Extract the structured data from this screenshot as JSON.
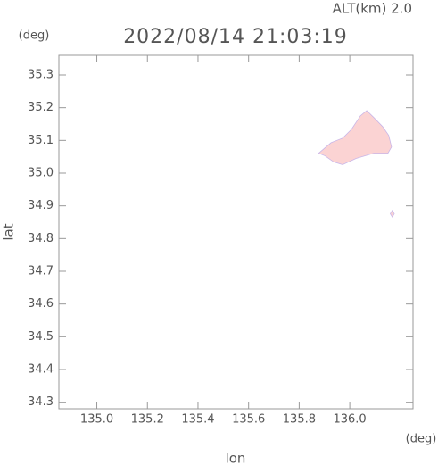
{
  "chart_data": {
    "type": "map",
    "title": "2022/08/14 21:03:19",
    "subtitle": "ALT(km) 2.0",
    "xlabel": "lon",
    "ylabel": "lat",
    "xunit": "(deg)",
    "yunit": "(deg)",
    "xlim": [
      134.85,
      136.25
    ],
    "ylim": [
      34.28,
      35.36
    ],
    "xticks": [
      {
        "value": 135,
        "label": "135.0"
      },
      135.2,
      135.4,
      135.6,
      135.8,
      {
        "value": 136,
        "label": "136.0"
      }
    ],
    "yticks": [
      35.3,
      35.2,
      35.1,
      {
        "value": 35,
        "label": "35.0"
      },
      34.9,
      34.8,
      34.7,
      34.6,
      34.5,
      34.4,
      34.3
    ],
    "color": "#fbd3d3",
    "echoes": [
      {
        "x": [
          135.877,
          135.926,
          135.972,
          136.007,
          136.042,
          136.067,
          136.095,
          136.13,
          136.154,
          136.165,
          136.151,
          136.095,
          136.025,
          135.972,
          135.937,
          135.902
        ],
        "y": [
          35.061,
          35.093,
          35.107,
          35.134,
          35.175,
          35.191,
          35.17,
          35.142,
          35.115,
          35.08,
          35.061,
          35.061,
          35.045,
          35.026,
          35.034,
          35.053
        ]
      },
      {
        "x": [
          136.16,
          136.168,
          136.176,
          136.168
        ],
        "y": [
          34.876,
          34.886,
          34.876,
          34.866
        ]
      }
    ]
  }
}
